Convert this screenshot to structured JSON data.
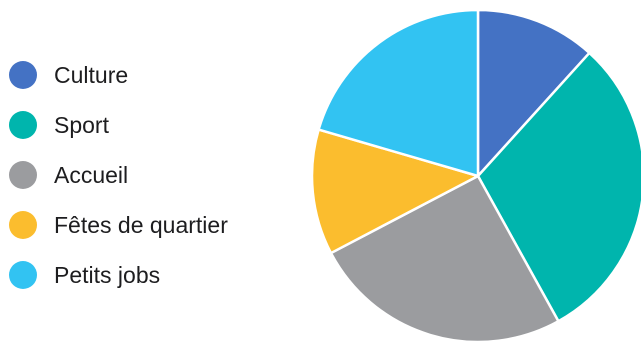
{
  "chart_data": {
    "type": "pie",
    "title": "",
    "legend_position": "left",
    "categories": [
      "Culture",
      "Sport",
      "Accueil",
      "Fêtes de quartier",
      "Petits jobs"
    ],
    "values": [
      12,
      31,
      26,
      12.5,
      21
    ],
    "colors": [
      "#4472c4",
      "#00b5ad",
      "#9b9c9f",
      "#fbbd2e",
      "#32c3f2"
    ]
  }
}
